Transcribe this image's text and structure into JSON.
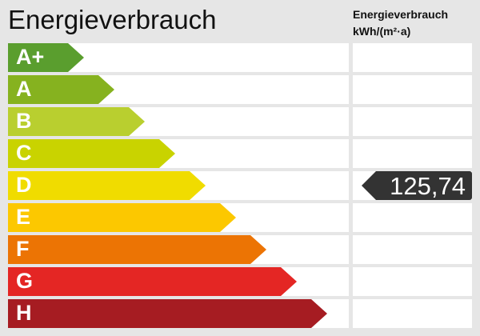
{
  "title": "Energieverbrauch",
  "unit_line1": "Energieverbrauch",
  "unit_line2": "kWh/(m²·a)",
  "classes": [
    {
      "label": "A+",
      "color": "#5a9e2e"
    },
    {
      "label": "A",
      "color": "#86b21f"
    },
    {
      "label": "B",
      "color": "#b9cf2f"
    },
    {
      "label": "C",
      "color": "#c9d300"
    },
    {
      "label": "D",
      "color": "#f0dc00"
    },
    {
      "label": "E",
      "color": "#fcc800"
    },
    {
      "label": "F",
      "color": "#ec7404"
    },
    {
      "label": "G",
      "color": "#e42624"
    },
    {
      "label": "H",
      "color": "#a61c22"
    }
  ],
  "indicator": {
    "value": "125,74",
    "class": "D",
    "color": "#333333"
  }
}
